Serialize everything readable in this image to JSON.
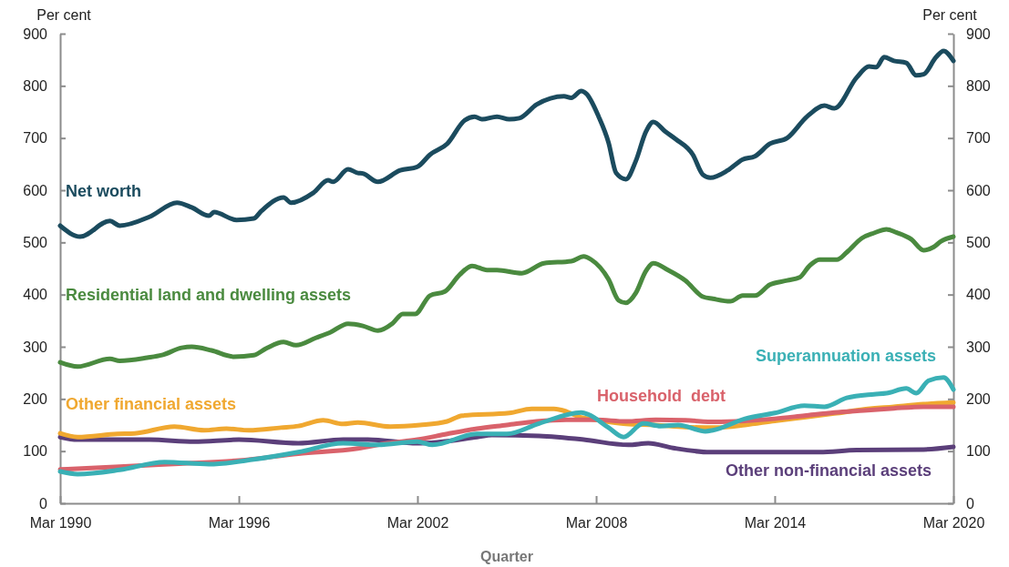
{
  "chart_data": {
    "type": "line",
    "xlabel": "Quarter",
    "ylabel": "Per cent",
    "y2label": "Per cent",
    "xlim": [
      "1990-03",
      "2020-03"
    ],
    "xticks": [
      {
        "value": "1990-03",
        "label": "Mar 1990"
      },
      {
        "value": "1996-03",
        "label": "Mar 1996"
      },
      {
        "value": "2002-03",
        "label": "Mar 2002"
      },
      {
        "value": "2008-03",
        "label": "Mar 2008"
      },
      {
        "value": "2014-03",
        "label": "Mar 2014"
      },
      {
        "value": "2020-03",
        "label": "Mar 2020"
      }
    ],
    "ylim": [
      0,
      900
    ],
    "yticks": [
      0,
      100,
      200,
      300,
      400,
      500,
      600,
      700,
      800,
      900
    ],
    "y2lim": [
      0,
      900
    ],
    "y2ticks": [
      0,
      100,
      200,
      300,
      400,
      500,
      600,
      700,
      800,
      900
    ],
    "grid": false,
    "legend": false,
    "line_style": "solid",
    "marker": "none",
    "series": [
      {
        "name": "Net worth",
        "color": "#1b4b5e",
        "x": [
          "1990-03",
          "1990-11",
          "1991-11",
          "1992-03",
          "1993-03",
          "1994-02",
          "1994-08",
          "1995-03",
          "1995-05",
          "1996-02",
          "1996-09",
          "1996-12",
          "1997-09",
          "1997-12",
          "1998-09",
          "1999-03",
          "1999-05",
          "1999-11",
          "2000-03",
          "2000-05",
          "2000-11",
          "2001-08",
          "2002-03",
          "2002-08",
          "2003-03",
          "2003-10",
          "2004-02",
          "2004-05",
          "2004-11",
          "2005-04",
          "2005-08",
          "2006-03",
          "2007-02",
          "2007-05",
          "2007-09",
          "2007-11",
          "2008-04",
          "2008-08",
          "2008-11",
          "2009-03",
          "2009-07",
          "2009-11",
          "2010-02",
          "2010-07",
          "2010-11",
          "2011-06",
          "2011-10",
          "2012-01",
          "2012-08",
          "2013-02",
          "2013-07",
          "2014-01",
          "2014-08",
          "2015-04",
          "2015-11",
          "2016-03",
          "2016-12",
          "2017-05",
          "2017-08",
          "2017-11",
          "2018-03",
          "2018-08",
          "2018-12",
          "2019-03",
          "2019-08",
          "2019-11",
          "2020-03"
        ],
        "values": [
          532,
          511,
          541,
          532,
          549,
          576,
          567,
          551,
          558,
          543,
          546,
          560,
          586,
          576,
          595,
          619,
          616,
          640,
          633,
          632,
          616,
          638,
          645,
          668,
          689,
          734,
          741,
          736,
          741,
          736,
          738,
          764,
          780,
          777,
          790,
          785,
          741,
          691,
          633,
          621,
          656,
          712,
          731,
          712,
          698,
          668,
          630,
          624,
          638,
          659,
          665,
          689,
          700,
          741,
          762,
          757,
          816,
          837,
          836,
          855,
          848,
          844,
          820,
          822,
          855,
          867,
          848
        ]
      },
      {
        "name": "Residential land and dwelling assets",
        "color": "#4a8a3f",
        "x": [
          "1990-03",
          "1990-10",
          "1991-11",
          "1992-03",
          "1993-02",
          "1993-08",
          "1994-04",
          "1994-08",
          "1995-04",
          "1996-01",
          "1996-09",
          "1997-02",
          "1997-09",
          "1998-02",
          "1998-10",
          "1999-04",
          "1999-11",
          "2000-05",
          "2000-11",
          "2001-05",
          "2001-09",
          "2002-02",
          "2002-08",
          "2003-02",
          "2003-08",
          "2004-01",
          "2004-07",
          "2004-11",
          "2005-09",
          "2006-06",
          "2007-05",
          "2007-10",
          "2008-01",
          "2008-08",
          "2008-12",
          "2009-03",
          "2009-07",
          "2009-11",
          "2010-02",
          "2010-08",
          "2011-03",
          "2011-10",
          "2012-02",
          "2012-09",
          "2013-02",
          "2013-07",
          "2014-01",
          "2014-08",
          "2015-01",
          "2015-05",
          "2015-09",
          "2016-04",
          "2016-08",
          "2017-02",
          "2017-07",
          "2017-12",
          "2018-04",
          "2018-10",
          "2019-03",
          "2019-07",
          "2019-10",
          "2020-03"
        ],
        "values": [
          270,
          262,
          277,
          273,
          279,
          284,
          298,
          300,
          293,
          281,
          284,
          297,
          309,
          303,
          317,
          328,
          344,
          340,
          331,
          345,
          363,
          363,
          398,
          406,
          438,
          455,
          447,
          447,
          441,
          460,
          464,
          473,
          467,
          429,
          389,
          384,
          403,
          445,
          460,
          447,
          427,
          396,
          392,
          387,
          398,
          398,
          419,
          427,
          433,
          455,
          467,
          467,
          481,
          508,
          518,
          525,
          519,
          506,
          485,
          491,
          502,
          511
        ]
      },
      {
        "name": "Other financial assets",
        "color": "#f0a830",
        "x": [
          "1990-03",
          "1990-10",
          "1992-02",
          "1992-09",
          "1994-01",
          "1995-01",
          "1995-10",
          "1996-07",
          "1997-08",
          "1998-03",
          "1999-01",
          "1999-09",
          "2000-03",
          "2001-04",
          "2002-04",
          "2003-03",
          "2003-09",
          "2005-04",
          "2006-01",
          "2006-10",
          "2007-03",
          "2007-08",
          "2008-03",
          "2009-03",
          "2010-03",
          "2011-03",
          "2012-03",
          "2013-03",
          "2014-03",
          "2015-03",
          "2016-03",
          "2017-03",
          "2018-03",
          "2019-03",
          "2020-03"
        ],
        "values": [
          134,
          127,
          133,
          134,
          147,
          140,
          143,
          140,
          145,
          148,
          159,
          152,
          155,
          147,
          150,
          157,
          168,
          173,
          181,
          181,
          176,
          166,
          160,
          152,
          150,
          146,
          145,
          150,
          158,
          165,
          172,
          180,
          185,
          190,
          193
        ]
      },
      {
        "name": "Household  debt",
        "color": "#d9626b",
        "x": [
          "1990-03",
          "1992-03",
          "1994-03",
          "1996-03",
          "1998-03",
          "2000-03",
          "2001-03",
          "2002-03",
          "2003-03",
          "2004-03",
          "2005-03",
          "2006-03",
          "2007-03",
          "2008-03",
          "2009-03",
          "2010-03",
          "2011-03",
          "2012-03",
          "2013-03",
          "2014-03",
          "2015-03",
          "2016-03",
          "2017-03",
          "2018-03",
          "2019-03",
          "2020-03"
        ],
        "values": [
          65,
          70,
          76,
          82,
          95,
          105,
          115,
          122,
          133,
          143,
          150,
          157,
          160,
          160,
          157,
          160,
          159,
          156,
          158,
          162,
          168,
          174,
          178,
          182,
          185,
          185
        ]
      },
      {
        "name": "Superannuation assets",
        "color": "#3ab0b5",
        "x": [
          "1990-03",
          "1990-10",
          "1992-03",
          "1993-09",
          "1995-03",
          "1996-09",
          "1998-03",
          "1999-09",
          "2000-11",
          "2002-03",
          "2002-09",
          "2004-03",
          "2005-03",
          "2006-04",
          "2007-09",
          "2007-12",
          "2008-08",
          "2009-02",
          "2009-10",
          "2010-05",
          "2010-12",
          "2011-11",
          "2012-02",
          "2013-03",
          "2014-03",
          "2015-03",
          "2015-11",
          "2016-08",
          "2017-07",
          "2017-12",
          "2018-08",
          "2018-12",
          "2019-05",
          "2019-11",
          "2020-03"
        ],
        "values": [
          61,
          56,
          64,
          79,
          75,
          84,
          98,
          115,
          112,
          118,
          112,
          133,
          133,
          153,
          174,
          170,
          145,
          127,
          153,
          148,
          150,
          138,
          140,
          162,
          173,
          187,
          185,
          202,
          209,
          211,
          220,
          211,
          235,
          241,
          218
        ]
      },
      {
        "name": "Other non-financial assets",
        "color": "#5b3f7a",
        "x": [
          "1990-03",
          "1990-10",
          "1993-03",
          "1994-09",
          "1996-03",
          "1998-03",
          "1999-09",
          "2000-07",
          "2002-03",
          "2004-03",
          "2004-09",
          "2006-04",
          "2007-10",
          "2009-04",
          "2009-12",
          "2010-10",
          "2012-01",
          "2015-09",
          "2016-12",
          "2019-03",
          "2020-03"
        ],
        "values": [
          127,
          122,
          122,
          118,
          122,
          115,
          122,
          122,
          115,
          127,
          131,
          129,
          122,
          112,
          115,
          106,
          98,
          98,
          102,
          103,
          108
        ]
      }
    ]
  }
}
